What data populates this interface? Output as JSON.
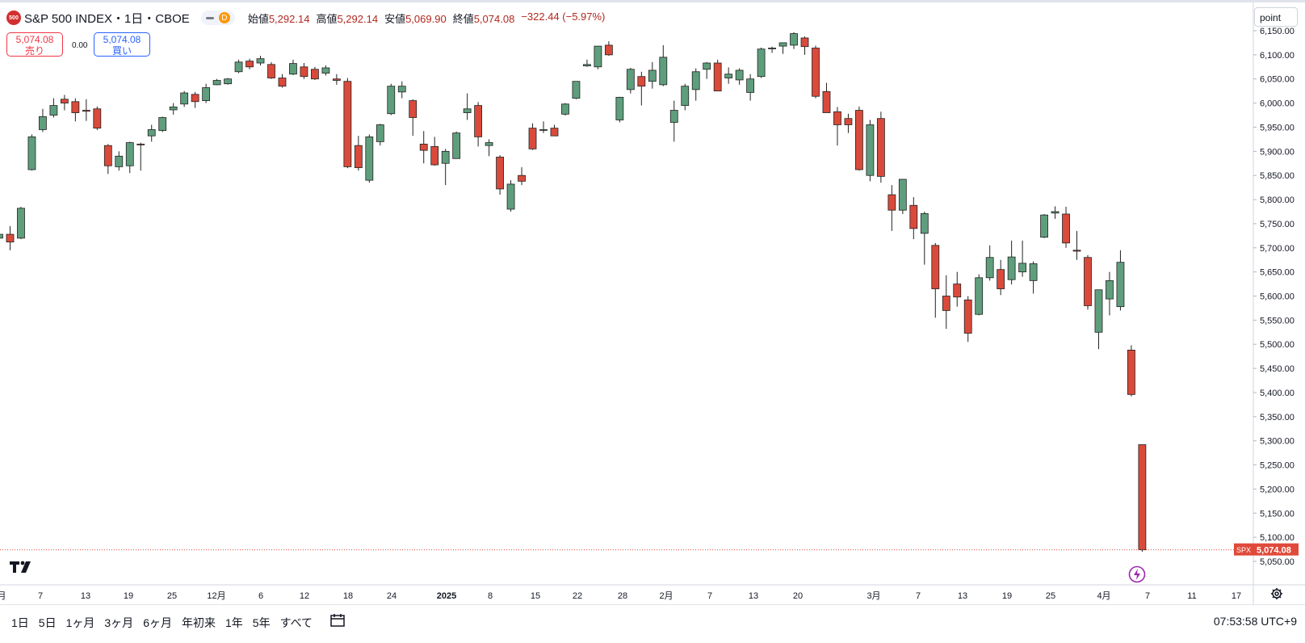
{
  "header": {
    "symbol_badge": "500",
    "title": "S&P 500 INDEX・1日・CBOE",
    "interval_badge": "D",
    "ohlc": [
      {
        "label": "始値",
        "value": "5,292.14"
      },
      {
        "label": "高値",
        "value": "5,292.14"
      },
      {
        "label": "安値",
        "value": "5,069.90"
      },
      {
        "label": "終値",
        "value": "5,074.08"
      }
    ],
    "change": "−322.44 (−5.97%)"
  },
  "trade": {
    "sell_price": "5,074.08",
    "sell_label": "売り",
    "spread": "0.00",
    "buy_price": "5,074.08",
    "buy_label": "買い"
  },
  "price_axis": {
    "unit_button": "point",
    "ticks": [
      "6,150.00",
      "6,100.00",
      "6,050.00",
      "6,000.00",
      "5,950.00",
      "5,900.00",
      "5,850.00",
      "5,800.00",
      "5,750.00",
      "5,700.00",
      "5,650.00",
      "5,600.00",
      "5,550.00",
      "5,500.00",
      "5,450.00",
      "5,400.00",
      "5,350.00",
      "5,300.00",
      "5,250.00",
      "5,200.00",
      "5,150.00",
      "5,100.00",
      "5,050.00"
    ],
    "last_symbol": "SPX",
    "last_price": "5,074.08"
  },
  "time_axis": {
    "labels": [
      "月",
      "7",
      "13",
      "19",
      "25",
      "12月",
      "6",
      "12",
      "18",
      "24",
      "2025",
      "8",
      "15",
      "22",
      "28",
      "2月",
      "7",
      "13",
      "20",
      "3月",
      "7",
      "13",
      "19",
      "25",
      "4月",
      "7",
      "11",
      "17"
    ]
  },
  "range_buttons": [
    "1日",
    "5日",
    "1ヶ月",
    "3ヶ月",
    "6ヶ月",
    "年初来",
    "1年",
    "5年",
    "すべて"
  ],
  "clock": "07:53:58 UTC+9",
  "colors": {
    "up": "#5f9e7d",
    "down": "#d94a3b",
    "border": "#222222",
    "last_line": "#e04a3a"
  },
  "icons": {
    "logo": "tradingview-logo-icon",
    "settings": "gear-icon",
    "goto": "calendar-goto-icon",
    "alert": "lightning-icon"
  },
  "chart_data": {
    "type": "candlestick",
    "title": "S&P 500 INDEX・1日・CBOE",
    "ylim": [
      5040,
      6160
    ],
    "grid": false,
    "candles": [
      {
        "o": 5720,
        "h": 5735,
        "l": 5715,
        "c": 5728
      },
      {
        "o": 5728,
        "h": 5745,
        "l": 5695,
        "c": 5712
      },
      {
        "o": 5720,
        "h": 5785,
        "l": 5718,
        "c": 5782
      },
      {
        "o": 5862,
        "h": 5935,
        "l": 5860,
        "c": 5930
      },
      {
        "o": 5945,
        "h": 5988,
        "l": 5940,
        "c": 5972
      },
      {
        "o": 5975,
        "h": 6010,
        "l": 5970,
        "c": 5995
      },
      {
        "o": 6008,
        "h": 6017,
        "l": 5985,
        "c": 6000
      },
      {
        "o": 6003,
        "h": 6010,
        "l": 5962,
        "c": 5980
      },
      {
        "o": 5985,
        "h": 6008,
        "l": 5963,
        "c": 5983
      },
      {
        "o": 5988,
        "h": 5993,
        "l": 5944,
        "c": 5948
      },
      {
        "o": 5912,
        "h": 5915,
        "l": 5853,
        "c": 5870
      },
      {
        "o": 5868,
        "h": 5900,
        "l": 5860,
        "c": 5890
      },
      {
        "o": 5870,
        "h": 5920,
        "l": 5855,
        "c": 5918
      },
      {
        "o": 5915,
        "h": 5918,
        "l": 5860,
        "c": 5914
      },
      {
        "o": 5932,
        "h": 5955,
        "l": 5920,
        "c": 5945
      },
      {
        "o": 5943,
        "h": 5972,
        "l": 5940,
        "c": 5970
      },
      {
        "o": 5986,
        "h": 6000,
        "l": 5976,
        "c": 5992
      },
      {
        "o": 5998,
        "h": 6025,
        "l": 5992,
        "c": 6021
      },
      {
        "o": 6018,
        "h": 6023,
        "l": 5990,
        "c": 6003
      },
      {
        "o": 6005,
        "h": 6040,
        "l": 6000,
        "c": 6032
      },
      {
        "o": 6038,
        "h": 6050,
        "l": 6037,
        "c": 6047
      },
      {
        "o": 6040,
        "h": 6052,
        "l": 6038,
        "c": 6050
      },
      {
        "o": 6065,
        "h": 6090,
        "l": 6062,
        "c": 6085
      },
      {
        "o": 6087,
        "h": 6092,
        "l": 6070,
        "c": 6075
      },
      {
        "o": 6083,
        "h": 6098,
        "l": 6078,
        "c": 6092
      },
      {
        "o": 6080,
        "h": 6085,
        "l": 6050,
        "c": 6052
      },
      {
        "o": 6052,
        "h": 6060,
        "l": 6032,
        "c": 6035
      },
      {
        "o": 6060,
        "h": 6090,
        "l": 6058,
        "c": 6082
      },
      {
        "o": 6075,
        "h": 6083,
        "l": 6050,
        "c": 6055
      },
      {
        "o": 6070,
        "h": 6075,
        "l": 6048,
        "c": 6050
      },
      {
        "o": 6062,
        "h": 6078,
        "l": 6057,
        "c": 6073
      },
      {
        "o": 6050,
        "h": 6060,
        "l": 6038,
        "c": 6047
      },
      {
        "o": 6045,
        "h": 6052,
        "l": 5865,
        "c": 5868
      },
      {
        "o": 5912,
        "h": 5932,
        "l": 5860,
        "c": 5866
      },
      {
        "o": 5840,
        "h": 5935,
        "l": 5835,
        "c": 5930
      },
      {
        "o": 5920,
        "h": 5957,
        "l": 5912,
        "c": 5955
      },
      {
        "o": 5978,
        "h": 6040,
        "l": 5975,
        "c": 6035
      },
      {
        "o": 6023,
        "h": 6045,
        "l": 6010,
        "c": 6035
      },
      {
        "o": 6005,
        "h": 6008,
        "l": 5932,
        "c": 5970
      },
      {
        "o": 5915,
        "h": 5942,
        "l": 5875,
        "c": 5902
      },
      {
        "o": 5910,
        "h": 5930,
        "l": 5870,
        "c": 5872
      },
      {
        "o": 5875,
        "h": 5905,
        "l": 5830,
        "c": 5900
      },
      {
        "o": 5885,
        "h": 5941,
        "l": 5885,
        "c": 5938
      },
      {
        "o": 5980,
        "h": 6020,
        "l": 5965,
        "c": 5988
      },
      {
        "o": 5995,
        "h": 6002,
        "l": 5910,
        "c": 5930
      },
      {
        "o": 5912,
        "h": 5925,
        "l": 5890,
        "c": 5918
      },
      {
        "o": 5888,
        "h": 5892,
        "l": 5810,
        "c": 5822
      },
      {
        "o": 5780,
        "h": 5840,
        "l": 5775,
        "c": 5832
      },
      {
        "o": 5850,
        "h": 5867,
        "l": 5830,
        "c": 5838
      },
      {
        "o": 5948,
        "h": 5958,
        "l": 5903,
        "c": 5905
      },
      {
        "o": 5944,
        "h": 5962,
        "l": 5938,
        "c": 5945
      },
      {
        "o": 5948,
        "h": 5955,
        "l": 5936,
        "c": 5932
      },
      {
        "o": 5977,
        "h": 6000,
        "l": 5974,
        "c": 5998
      },
      {
        "o": 6010,
        "h": 6045,
        "l": 6008,
        "c": 6045
      },
      {
        "o": 6077,
        "h": 6090,
        "l": 6075,
        "c": 6080
      },
      {
        "o": 6075,
        "h": 6118,
        "l": 6070,
        "c": 6118
      },
      {
        "o": 6120,
        "h": 6128,
        "l": 6098,
        "c": 6100
      },
      {
        "o": 5965,
        "h": 6013,
        "l": 5960,
        "c": 6012
      },
      {
        "o": 6028,
        "h": 6073,
        "l": 6020,
        "c": 6070
      },
      {
        "o": 6055,
        "h": 6065,
        "l": 5995,
        "c": 6035
      },
      {
        "o": 6045,
        "h": 6085,
        "l": 6030,
        "c": 6068
      },
      {
        "o": 6038,
        "h": 6120,
        "l": 6035,
        "c": 6095
      },
      {
        "o": 5960,
        "h": 6005,
        "l": 5920,
        "c": 5985
      },
      {
        "o": 5995,
        "h": 6040,
        "l": 5985,
        "c": 6035
      },
      {
        "o": 6028,
        "h": 6072,
        "l": 6005,
        "c": 6065
      },
      {
        "o": 6070,
        "h": 6085,
        "l": 6050,
        "c": 6083
      },
      {
        "o": 6083,
        "h": 6090,
        "l": 6035,
        "c": 6025
      },
      {
        "o": 6052,
        "h": 6074,
        "l": 6040,
        "c": 6060
      },
      {
        "o": 6048,
        "h": 6072,
        "l": 6038,
        "c": 6068
      },
      {
        "o": 6022,
        "h": 6060,
        "l": 6005,
        "c": 6050
      },
      {
        "o": 6055,
        "h": 6115,
        "l": 6052,
        "c": 6112
      },
      {
        "o": 6114,
        "h": 6117,
        "l": 6104,
        "c": 6114
      },
      {
        "o": 6118,
        "h": 6125,
        "l": 6102,
        "c": 6125
      },
      {
        "o": 6120,
        "h": 6147,
        "l": 6112,
        "c": 6144
      },
      {
        "o": 6135,
        "h": 6138,
        "l": 6100,
        "c": 6117
      },
      {
        "o": 6114,
        "h": 6119,
        "l": 6010,
        "c": 6014
      },
      {
        "o": 6024,
        "h": 6042,
        "l": 5980,
        "c": 5980
      },
      {
        "o": 5982,
        "h": 5992,
        "l": 5912,
        "c": 5955
      },
      {
        "o": 5968,
        "h": 5978,
        "l": 5938,
        "c": 5955
      },
      {
        "o": 5985,
        "h": 5993,
        "l": 5860,
        "c": 5862
      },
      {
        "o": 5850,
        "h": 5965,
        "l": 5838,
        "c": 5955
      },
      {
        "o": 5968,
        "h": 5982,
        "l": 5835,
        "c": 5848
      },
      {
        "o": 5810,
        "h": 5830,
        "l": 5735,
        "c": 5778
      },
      {
        "o": 5778,
        "h": 5840,
        "l": 5770,
        "c": 5842
      },
      {
        "o": 5788,
        "h": 5805,
        "l": 5718,
        "c": 5740
      },
      {
        "o": 5730,
        "h": 5775,
        "l": 5665,
        "c": 5771
      },
      {
        "o": 5705,
        "h": 5710,
        "l": 5555,
        "c": 5615
      },
      {
        "o": 5600,
        "h": 5643,
        "l": 5532,
        "c": 5570
      },
      {
        "o": 5625,
        "h": 5650,
        "l": 5578,
        "c": 5598
      },
      {
        "o": 5592,
        "h": 5600,
        "l": 5505,
        "c": 5523
      },
      {
        "o": 5562,
        "h": 5645,
        "l": 5560,
        "c": 5638
      },
      {
        "o": 5638,
        "h": 5705,
        "l": 5632,
        "c": 5680
      },
      {
        "o": 5655,
        "h": 5675,
        "l": 5602,
        "c": 5615
      },
      {
        "o": 5634,
        "h": 5715,
        "l": 5624,
        "c": 5681
      },
      {
        "o": 5650,
        "h": 5715,
        "l": 5640,
        "c": 5668
      },
      {
        "o": 5632,
        "h": 5672,
        "l": 5605,
        "c": 5667
      },
      {
        "o": 5722,
        "h": 5770,
        "l": 5720,
        "c": 5768
      },
      {
        "o": 5772,
        "h": 5786,
        "l": 5760,
        "c": 5775
      },
      {
        "o": 5770,
        "h": 5785,
        "l": 5700,
        "c": 5710
      },
      {
        "o": 5695,
        "h": 5735,
        "l": 5675,
        "c": 5693
      },
      {
        "o": 5680,
        "h": 5685,
        "l": 5572,
        "c": 5580
      },
      {
        "o": 5525,
        "h": 5612,
        "l": 5490,
        "c": 5613
      },
      {
        "o": 5594,
        "h": 5650,
        "l": 5560,
        "c": 5632
      },
      {
        "o": 5578,
        "h": 5695,
        "l": 5570,
        "c": 5670
      },
      {
        "o": 5488,
        "h": 5498,
        "l": 5392,
        "c": 5396
      },
      {
        "o": 5292,
        "h": 5292,
        "l": 5070,
        "c": 5074
      }
    ]
  }
}
